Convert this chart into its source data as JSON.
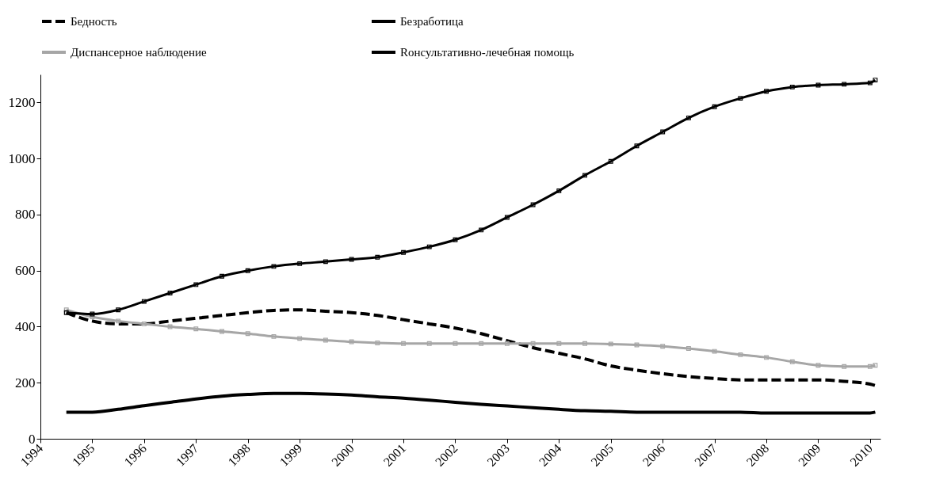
{
  "chart_data": {
    "type": "line",
    "x": [
      1994.5,
      1995,
      1995.5,
      1996,
      1996.5,
      1997,
      1997.5,
      1998,
      1998.5,
      1999,
      1999.5,
      2000,
      2000.5,
      2001,
      2001.5,
      2002,
      2002.5,
      2003,
      2003.5,
      2004,
      2004.5,
      2005,
      2005.5,
      2006,
      2006.5,
      2007,
      2007.5,
      2008,
      2008.5,
      2009,
      2009.5,
      2010,
      2010.1
    ],
    "series": [
      {
        "name": "Бедность",
        "color": "#000000",
        "line_style": "dashed",
        "marker": "none",
        "values": [
          450,
          420,
          410,
          410,
          420,
          430,
          440,
          450,
          458,
          460,
          455,
          450,
          440,
          425,
          410,
          395,
          375,
          350,
          325,
          305,
          285,
          260,
          245,
          232,
          222,
          215,
          210,
          210,
          210,
          210,
          205,
          195,
          190
        ]
      },
      {
        "name": "Безработица",
        "color": "#000000",
        "line_style": "solid",
        "marker": "none",
        "values": [
          95,
          95,
          105,
          118,
          130,
          142,
          152,
          158,
          162,
          162,
          160,
          156,
          150,
          145,
          138,
          130,
          123,
          117,
          111,
          105,
          100,
          98,
          95,
          95,
          95,
          95,
          95,
          92,
          92,
          92,
          92,
          92,
          95
        ]
      },
      {
        "name": "Диспансерное наблюдение",
        "color": "#a6a6a6",
        "line_style": "solid",
        "marker": "square",
        "values": [
          460,
          435,
          420,
          410,
          400,
          392,
          383,
          375,
          365,
          358,
          352,
          346,
          342,
          340,
          340,
          340,
          340,
          340,
          340,
          340,
          340,
          338,
          335,
          330,
          322,
          312,
          300,
          290,
          275,
          262,
          258,
          258,
          262
        ]
      },
      {
        "name": "Rонсультативно-лечебная помощь",
        "color": "#000000",
        "line_style": "solid",
        "marker": "square",
        "values": [
          450,
          445,
          460,
          490,
          520,
          550,
          580,
          600,
          615,
          625,
          632,
          640,
          648,
          665,
          685,
          710,
          745,
          790,
          835,
          885,
          940,
          990,
          1045,
          1095,
          1145,
          1185,
          1215,
          1240,
          1255,
          1262,
          1265,
          1270,
          1280
        ]
      }
    ],
    "xlim": [
      1994,
      2010.2
    ],
    "xticks": [
      1994,
      1995,
      1996,
      1997,
      1998,
      1999,
      2000,
      2001,
      2002,
      2003,
      2004,
      2005,
      2006,
      2007,
      2008,
      2009,
      2010
    ],
    "ylim": [
      0,
      1300
    ],
    "yticks": [
      0,
      200,
      400,
      600,
      800,
      1000,
      1200
    ],
    "grid": false,
    "legend": "top left"
  }
}
